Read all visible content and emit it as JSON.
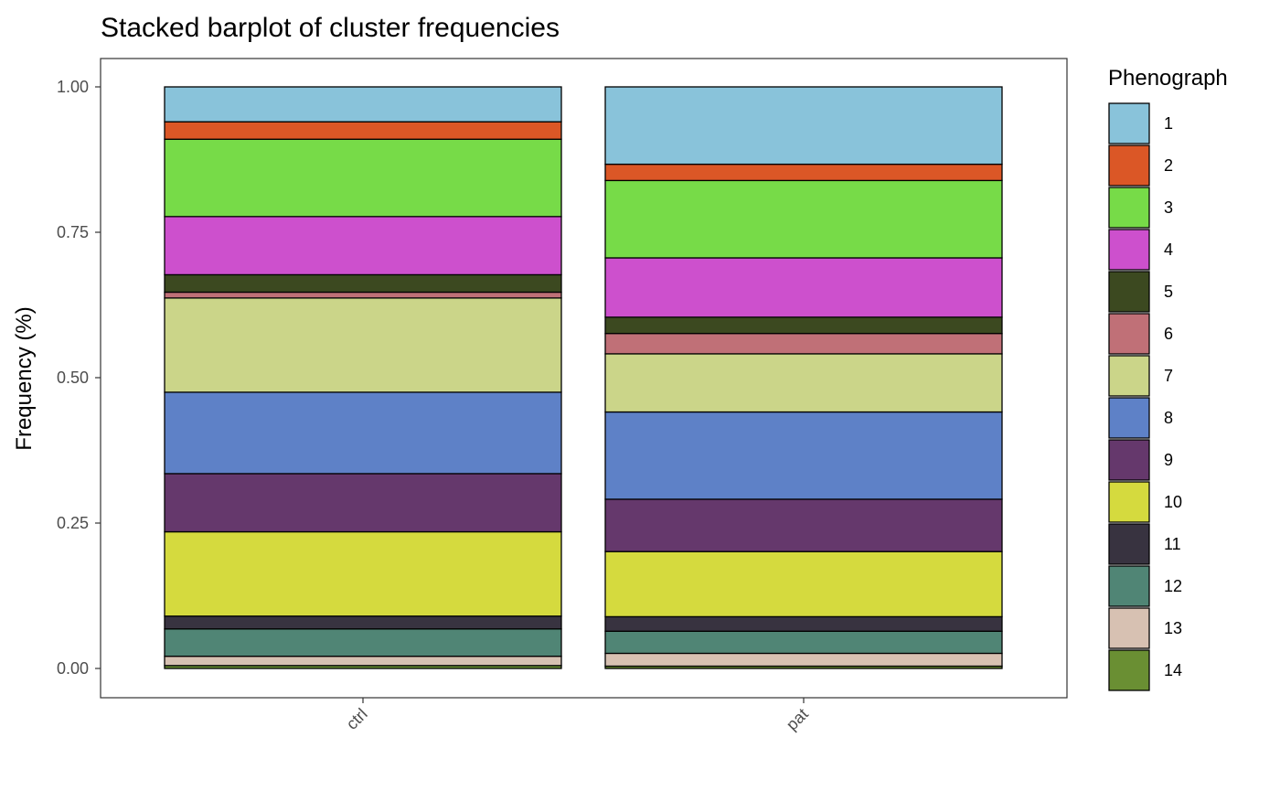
{
  "chart_data": {
    "type": "bar",
    "stacked": true,
    "title": "Stacked barplot of cluster frequencies",
    "ylabel": "Frequency (%)",
    "xlabel": "",
    "ylim": [
      0,
      1
    ],
    "yticks": [
      "0.00",
      "0.25",
      "0.50",
      "0.75",
      "1.00"
    ],
    "yticks_values": [
      0,
      0.25,
      0.5,
      0.75,
      1.0
    ],
    "categories": [
      "ctrl",
      "pat"
    ],
    "legend_title": "Phenograph",
    "legend_position": "right",
    "series": [
      {
        "name": "1",
        "color": "#89C3DA",
        "values": [
          0.06,
          0.133
        ]
      },
      {
        "name": "2",
        "color": "#DB5726",
        "values": [
          0.03,
          0.028
        ]
      },
      {
        "name": "3",
        "color": "#77DB48",
        "values": [
          0.133,
          0.133
        ]
      },
      {
        "name": "4",
        "color": "#CD50CD",
        "values": [
          0.1,
          0.102
        ]
      },
      {
        "name": "5",
        "color": "#3C4920",
        "values": [
          0.03,
          0.028
        ]
      },
      {
        "name": "6",
        "color": "#C07077",
        "values": [
          0.01,
          0.035
        ]
      },
      {
        "name": "7",
        "color": "#CBD589",
        "values": [
          0.162,
          0.1
        ]
      },
      {
        "name": "8",
        "color": "#5E81C7",
        "values": [
          0.14,
          0.15
        ]
      },
      {
        "name": "9",
        "color": "#65386C",
        "values": [
          0.1,
          0.09
        ]
      },
      {
        "name": "10",
        "color": "#D5DA3E",
        "values": [
          0.145,
          0.112
        ]
      },
      {
        "name": "11",
        "color": "#383340",
        "values": [
          0.022,
          0.025
        ]
      },
      {
        "name": "12",
        "color": "#508575",
        "values": [
          0.047,
          0.038
        ]
      },
      {
        "name": "13",
        "color": "#D7C1B2",
        "values": [
          0.016,
          0.022
        ]
      },
      {
        "name": "14",
        "color": "#6A8F33",
        "values": [
          0.005,
          0.004
        ]
      }
    ]
  }
}
